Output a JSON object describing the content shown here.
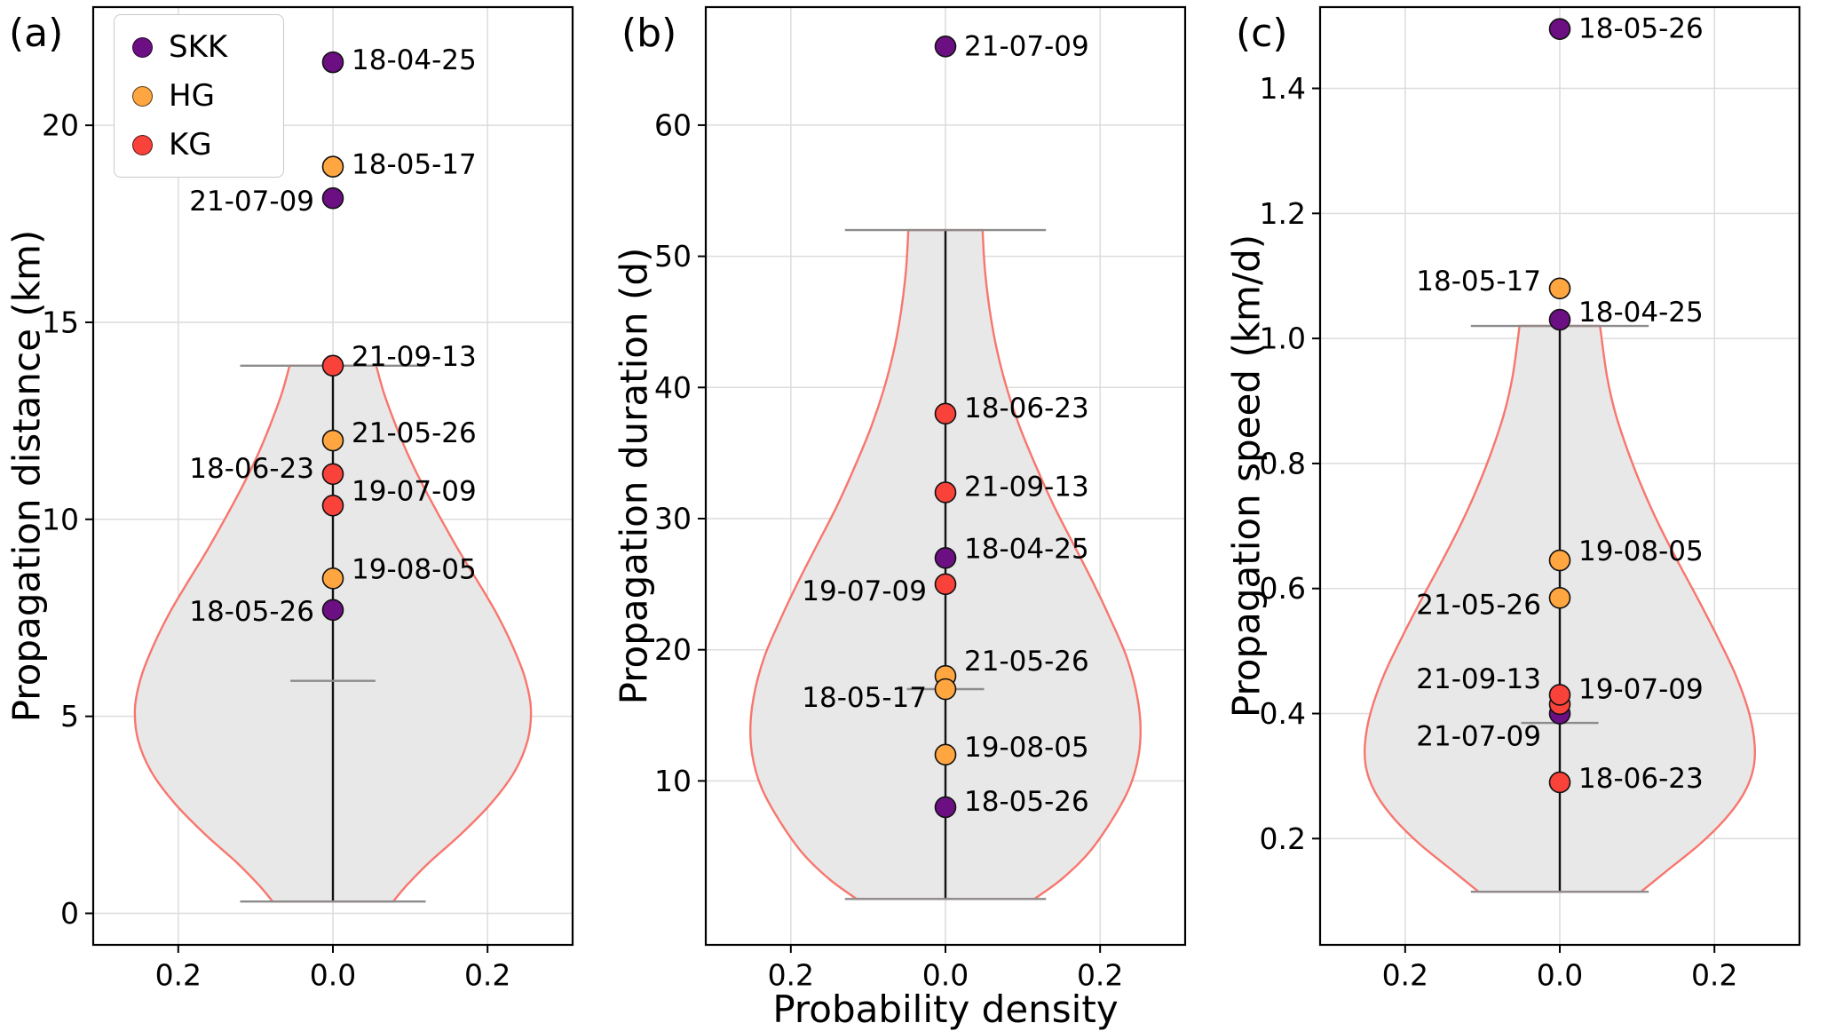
{
  "figure": {
    "background": "#ffffff",
    "xlabel": "Probability density",
    "legend": {
      "items": [
        {
          "label": "SKK",
          "color": "#6b0f82"
        },
        {
          "label": "HG",
          "color": "#ffa640"
        },
        {
          "label": "KG",
          "color": "#f8423a"
        }
      ]
    },
    "style": {
      "violin_fill": "#e8e8e8",
      "violin_edge": "#f8766d",
      "grid_color": "#dcdcdc",
      "axis_color": "#000000",
      "center_line_color": "#111111",
      "cap_color": "#8c8c8c",
      "text_color": "#000000"
    }
  },
  "chart_data": [
    {
      "type": "violin",
      "panel_label": "(a)",
      "ylabel": "Propagation distance (km)",
      "ylim": [
        -0.8,
        23.0
      ],
      "yticks": [
        0,
        5,
        10,
        15,
        20
      ],
      "ytick_labels": [
        "0",
        "5",
        "10",
        "15",
        "20"
      ],
      "xlim": [
        -0.31,
        0.31
      ],
      "xticks": [
        -0.2,
        0.0,
        0.2
      ],
      "xtick_labels": [
        "0.2",
        "0.0",
        "0.2"
      ],
      "violin": {
        "min": 0.3,
        "max": 13.9,
        "median": 5.9,
        "cap_halfwidth": 0.12,
        "median_halfwidth": 0.055,
        "profile": [
          [
            0.3,
            0.078
          ],
          [
            0.7,
            0.095
          ],
          [
            1.3,
            0.125
          ],
          [
            2.0,
            0.165
          ],
          [
            2.8,
            0.205
          ],
          [
            3.6,
            0.235
          ],
          [
            4.4,
            0.252
          ],
          [
            5.2,
            0.256
          ],
          [
            6.0,
            0.248
          ],
          [
            6.8,
            0.232
          ],
          [
            7.6,
            0.212
          ],
          [
            8.4,
            0.188
          ],
          [
            9.2,
            0.163
          ],
          [
            10.0,
            0.14
          ],
          [
            10.8,
            0.118
          ],
          [
            11.6,
            0.098
          ],
          [
            12.4,
            0.081
          ],
          [
            13.2,
            0.066
          ],
          [
            13.9,
            0.056
          ]
        ]
      },
      "points": [
        {
          "date": "18-04-25",
          "group": "SKK",
          "y": 21.6,
          "side": "right",
          "dy": -2
        },
        {
          "date": "18-05-17",
          "group": "HG",
          "y": 18.95,
          "side": "right",
          "dy": -2
        },
        {
          "date": "21-07-09",
          "group": "SKK",
          "y": 18.15,
          "side": "left",
          "dy": 4
        },
        {
          "date": "21-09-13",
          "group": "KG",
          "y": 13.9,
          "side": "right",
          "dy": -10
        },
        {
          "date": "21-05-26",
          "group": "HG",
          "y": 12.0,
          "side": "right",
          "dy": -8
        },
        {
          "date": "18-06-23",
          "group": "KG",
          "y": 11.15,
          "side": "left",
          "dy": -6
        },
        {
          "date": "19-07-09",
          "group": "KG",
          "y": 10.35,
          "side": "right",
          "dy": -16
        },
        {
          "date": "19-08-05",
          "group": "HG",
          "y": 8.5,
          "side": "right",
          "dy": -10
        },
        {
          "date": "18-05-26",
          "group": "SKK",
          "y": 7.7,
          "side": "left",
          "dy": 2
        }
      ]
    },
    {
      "type": "violin",
      "panel_label": "(b)",
      "ylabel": "Propagation duration (d)",
      "ylim": [
        -2.5,
        69.0
      ],
      "yticks": [
        10,
        20,
        30,
        40,
        50,
        60
      ],
      "ytick_labels": [
        "10",
        "20",
        "30",
        "40",
        "50",
        "60"
      ],
      "xlim": [
        -0.31,
        0.31
      ],
      "xticks": [
        -0.2,
        0.0,
        0.2
      ],
      "xtick_labels": [
        "0.2",
        "0.0",
        "0.2"
      ],
      "violin": {
        "min": 1.0,
        "max": 52.0,
        "median": 17.0,
        "cap_halfwidth": 0.13,
        "median_halfwidth": 0.05,
        "profile": [
          [
            1,
            0.115
          ],
          [
            2.5,
            0.15
          ],
          [
            4.5,
            0.185
          ],
          [
            7,
            0.215
          ],
          [
            9.5,
            0.238
          ],
          [
            12,
            0.25
          ],
          [
            14.5,
            0.252
          ],
          [
            17,
            0.246
          ],
          [
            19.5,
            0.234
          ],
          [
            22,
            0.216
          ],
          [
            25,
            0.192
          ],
          [
            28,
            0.166
          ],
          [
            31,
            0.14
          ],
          [
            34,
            0.117
          ],
          [
            37,
            0.096
          ],
          [
            40,
            0.079
          ],
          [
            43,
            0.066
          ],
          [
            46,
            0.057
          ],
          [
            49,
            0.051
          ],
          [
            52,
            0.048
          ]
        ]
      },
      "points": [
        {
          "date": "21-07-09",
          "group": "SKK",
          "y": 66.0,
          "side": "right",
          "dy": 0
        },
        {
          "date": "18-06-23",
          "group": "KG",
          "y": 38.0,
          "side": "right",
          "dy": -6
        },
        {
          "date": "21-09-13",
          "group": "KG",
          "y": 32.0,
          "side": "right",
          "dy": -6
        },
        {
          "date": "18-04-25",
          "group": "SKK",
          "y": 27.0,
          "side": "right",
          "dy": -10
        },
        {
          "date": "19-07-09",
          "group": "KG",
          "y": 25.0,
          "side": "left",
          "dy": 8
        },
        {
          "date": "21-05-26",
          "group": "HG",
          "y": 18.0,
          "side": "right",
          "dy": -16
        },
        {
          "date": "18-05-17",
          "group": "HG",
          "y": 17.0,
          "side": "left",
          "dy": 10
        },
        {
          "date": "19-08-05",
          "group": "HG",
          "y": 12.0,
          "side": "right",
          "dy": -8
        },
        {
          "date": "18-05-26",
          "group": "SKK",
          "y": 8.0,
          "side": "right",
          "dy": -6
        }
      ]
    },
    {
      "type": "violin",
      "panel_label": "(c)",
      "ylabel": "Propagation speed (km/d)",
      "ylim": [
        0.03,
        1.53
      ],
      "yticks": [
        0.2,
        0.4,
        0.6,
        0.8,
        1.0,
        1.2,
        1.4
      ],
      "ytick_labels": [
        "0.2",
        "0.4",
        "0.6",
        "0.8",
        "1.0",
        "1.2",
        "1.4"
      ],
      "xlim": [
        -0.31,
        0.31
      ],
      "xticks": [
        -0.2,
        0.0,
        0.2
      ],
      "xtick_labels": [
        "0.2",
        "0.0",
        "0.2"
      ],
      "violin": {
        "min": 0.115,
        "max": 1.02,
        "median": 0.385,
        "cap_halfwidth": 0.115,
        "median_halfwidth": 0.05,
        "profile": [
          [
            0.115,
            0.105
          ],
          [
            0.15,
            0.14
          ],
          [
            0.19,
            0.18
          ],
          [
            0.23,
            0.213
          ],
          [
            0.27,
            0.237
          ],
          [
            0.31,
            0.25
          ],
          [
            0.35,
            0.252
          ],
          [
            0.4,
            0.245
          ],
          [
            0.46,
            0.228
          ],
          [
            0.52,
            0.205
          ],
          [
            0.58,
            0.18
          ],
          [
            0.64,
            0.154
          ],
          [
            0.7,
            0.129
          ],
          [
            0.76,
            0.107
          ],
          [
            0.82,
            0.088
          ],
          [
            0.88,
            0.072
          ],
          [
            0.94,
            0.061
          ],
          [
            1.02,
            0.052
          ]
        ]
      },
      "points": [
        {
          "date": "18-05-26",
          "group": "SKK",
          "y": 1.495,
          "side": "right",
          "dy": 0
        },
        {
          "date": "18-05-17",
          "group": "HG",
          "y": 1.08,
          "side": "left",
          "dy": -8
        },
        {
          "date": "18-04-25",
          "group": "SKK",
          "y": 1.03,
          "side": "right",
          "dy": -8
        },
        {
          "date": "19-08-05",
          "group": "HG",
          "y": 0.645,
          "side": "right",
          "dy": -10
        },
        {
          "date": "21-05-26",
          "group": "HG",
          "y": 0.585,
          "side": "left",
          "dy": 8
        },
        {
          "date": "21-07-09",
          "group": "SKK",
          "y": 0.4,
          "side": "left",
          "dy": 26
        },
        {
          "date": "21-09-13",
          "group": "KG",
          "y": 0.415,
          "side": "left",
          "dy": -28
        },
        {
          "date": "19-07-09",
          "group": "KG",
          "y": 0.43,
          "side": "right",
          "dy": -6
        },
        {
          "date": "18-06-23",
          "group": "KG",
          "y": 0.29,
          "side": "right",
          "dy": -4
        }
      ]
    }
  ]
}
